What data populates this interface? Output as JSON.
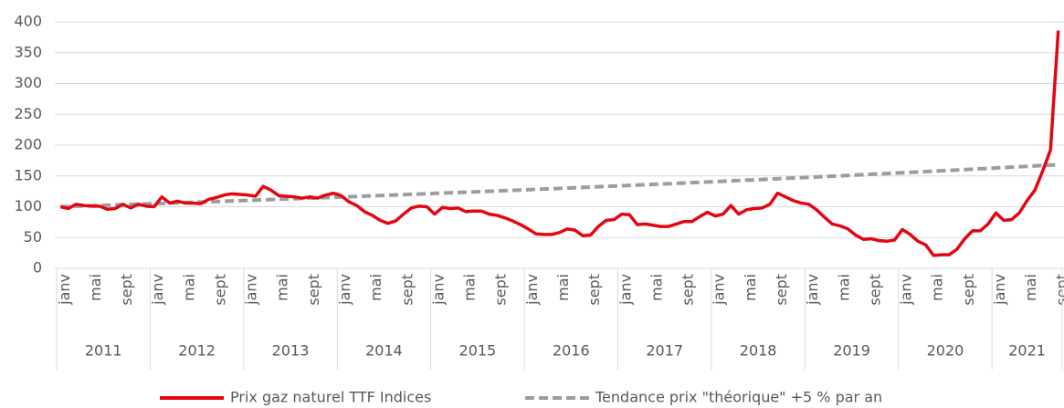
{
  "chart_data": {
    "type": "line",
    "categories": [
      "janv",
      null,
      null,
      null,
      "mai",
      null,
      null,
      null,
      "sept",
      null,
      null,
      null,
      "janv",
      null,
      null,
      null,
      "mai",
      null,
      null,
      null,
      "sept",
      null,
      null,
      null,
      "janv",
      null,
      null,
      null,
      "mai",
      null,
      null,
      null,
      "sept",
      null,
      null,
      null,
      "janv",
      null,
      null,
      null,
      "mai",
      null,
      null,
      null,
      "sept",
      null,
      null,
      null,
      "janv",
      null,
      null,
      null,
      "mai",
      null,
      null,
      null,
      "sept",
      null,
      null,
      null,
      "janv",
      null,
      null,
      null,
      "mai",
      null,
      null,
      null,
      "sept",
      null,
      null,
      null,
      "janv",
      null,
      null,
      null,
      "mai",
      null,
      null,
      null,
      "sept",
      null,
      null,
      null,
      "janv",
      null,
      null,
      null,
      "mai",
      null,
      null,
      null,
      "sept",
      null,
      null,
      null,
      "janv",
      null,
      null,
      null,
      "mai",
      null,
      null,
      null,
      "sept",
      null,
      null,
      null,
      "janv",
      null,
      null,
      null,
      "mai",
      null,
      null,
      null,
      "sept",
      null,
      null,
      null,
      "janv",
      null,
      null,
      null,
      "mai",
      null,
      null,
      null,
      "sept"
    ],
    "year_groups": [
      "2011",
      "2012",
      "2013",
      "2014",
      "2015",
      "2016",
      "2017",
      "2018",
      "2019",
      "2020",
      "2021"
    ],
    "series": [
      {
        "name": "Prix gaz naturel TTF Indices",
        "color": "#e30613",
        "dashed": false,
        "values": [
          100,
          97,
          104,
          102,
          101,
          101,
          96,
          97,
          104,
          98,
          104,
          101,
          100,
          116,
          106,
          109,
          106,
          106,
          105,
          112,
          115,
          119,
          121,
          120,
          119,
          117,
          133,
          127,
          118,
          117,
          116,
          114,
          116,
          114,
          119,
          122,
          118,
          108,
          102,
          92,
          86,
          78,
          73,
          77,
          88,
          98,
          101,
          100,
          88,
          99,
          97,
          98,
          92,
          93,
          93,
          88,
          86,
          82,
          77,
          71,
          64,
          56,
          55,
          55,
          58,
          64,
          62,
          53,
          54,
          68,
          78,
          79,
          88,
          87,
          71,
          72,
          70,
          68,
          68,
          72,
          76,
          76,
          84,
          91,
          85,
          88,
          102,
          88,
          95,
          97,
          98,
          104,
          122,
          116,
          110,
          106,
          104,
          95,
          83,
          72,
          69,
          64,
          54,
          47,
          48,
          45,
          44,
          46,
          63,
          55,
          44,
          38,
          21,
          22,
          22,
          31,
          48,
          61,
          61,
          72,
          90,
          78,
          79,
          90,
          110,
          127,
          158,
          192,
          386
        ]
      },
      {
        "name": "Tendance prix \"théorique\" +5 % par an",
        "color": "#9d9d9d",
        "dashed": true,
        "values": [
          100,
          100.4,
          100.8,
          101.3,
          101.7,
          102.1,
          102.5,
          102.9,
          103.3,
          103.8,
          104.2,
          104.6,
          105,
          105.4,
          105.9,
          106.3,
          106.8,
          107.2,
          107.6,
          108.1,
          108.5,
          108.9,
          109.4,
          109.8,
          110.3,
          110.7,
          111.2,
          111.6,
          112.1,
          112.5,
          113.0,
          113.5,
          113.9,
          114.4,
          114.8,
          115.3,
          115.8,
          116.2,
          116.7,
          117.2,
          117.7,
          118.2,
          118.7,
          119.1,
          119.6,
          120.1,
          120.6,
          121.1,
          121.6,
          122.1,
          122.6,
          123.1,
          123.6,
          124.1,
          124.6,
          125.1,
          125.6,
          126.1,
          126.6,
          127.1,
          127.6,
          128.2,
          128.7,
          129.2,
          129.8,
          130.3,
          130.8,
          131.4,
          131.9,
          132.4,
          133.0,
          133.5,
          134.0,
          134.6,
          135.1,
          135.7,
          136.2,
          136.8,
          137.4,
          137.9,
          138.5,
          139.0,
          139.6,
          140.2,
          140.7,
          141.3,
          141.9,
          142.5,
          143.1,
          143.6,
          144.2,
          144.8,
          145.4,
          146.0,
          146.6,
          147.2,
          147.8,
          148.4,
          149.0,
          149.6,
          150.2,
          150.8,
          151.4,
          152.1,
          152.7,
          153.3,
          153.9,
          154.5,
          155.1,
          155.8,
          156.4,
          157.1,
          157.7,
          158.4,
          159.0,
          159.7,
          160.3,
          160.9,
          161.6,
          162.2,
          162.9,
          163.6,
          164.2,
          164.9,
          165.6,
          166.3,
          166.9,
          167.6,
          168.3
        ]
      }
    ],
    "ylim": [
      0,
      400
    ],
    "yticks": [
      0,
      50,
      100,
      150,
      200,
      250,
      300,
      350,
      400
    ],
    "grid": true,
    "legend": "bottom"
  }
}
